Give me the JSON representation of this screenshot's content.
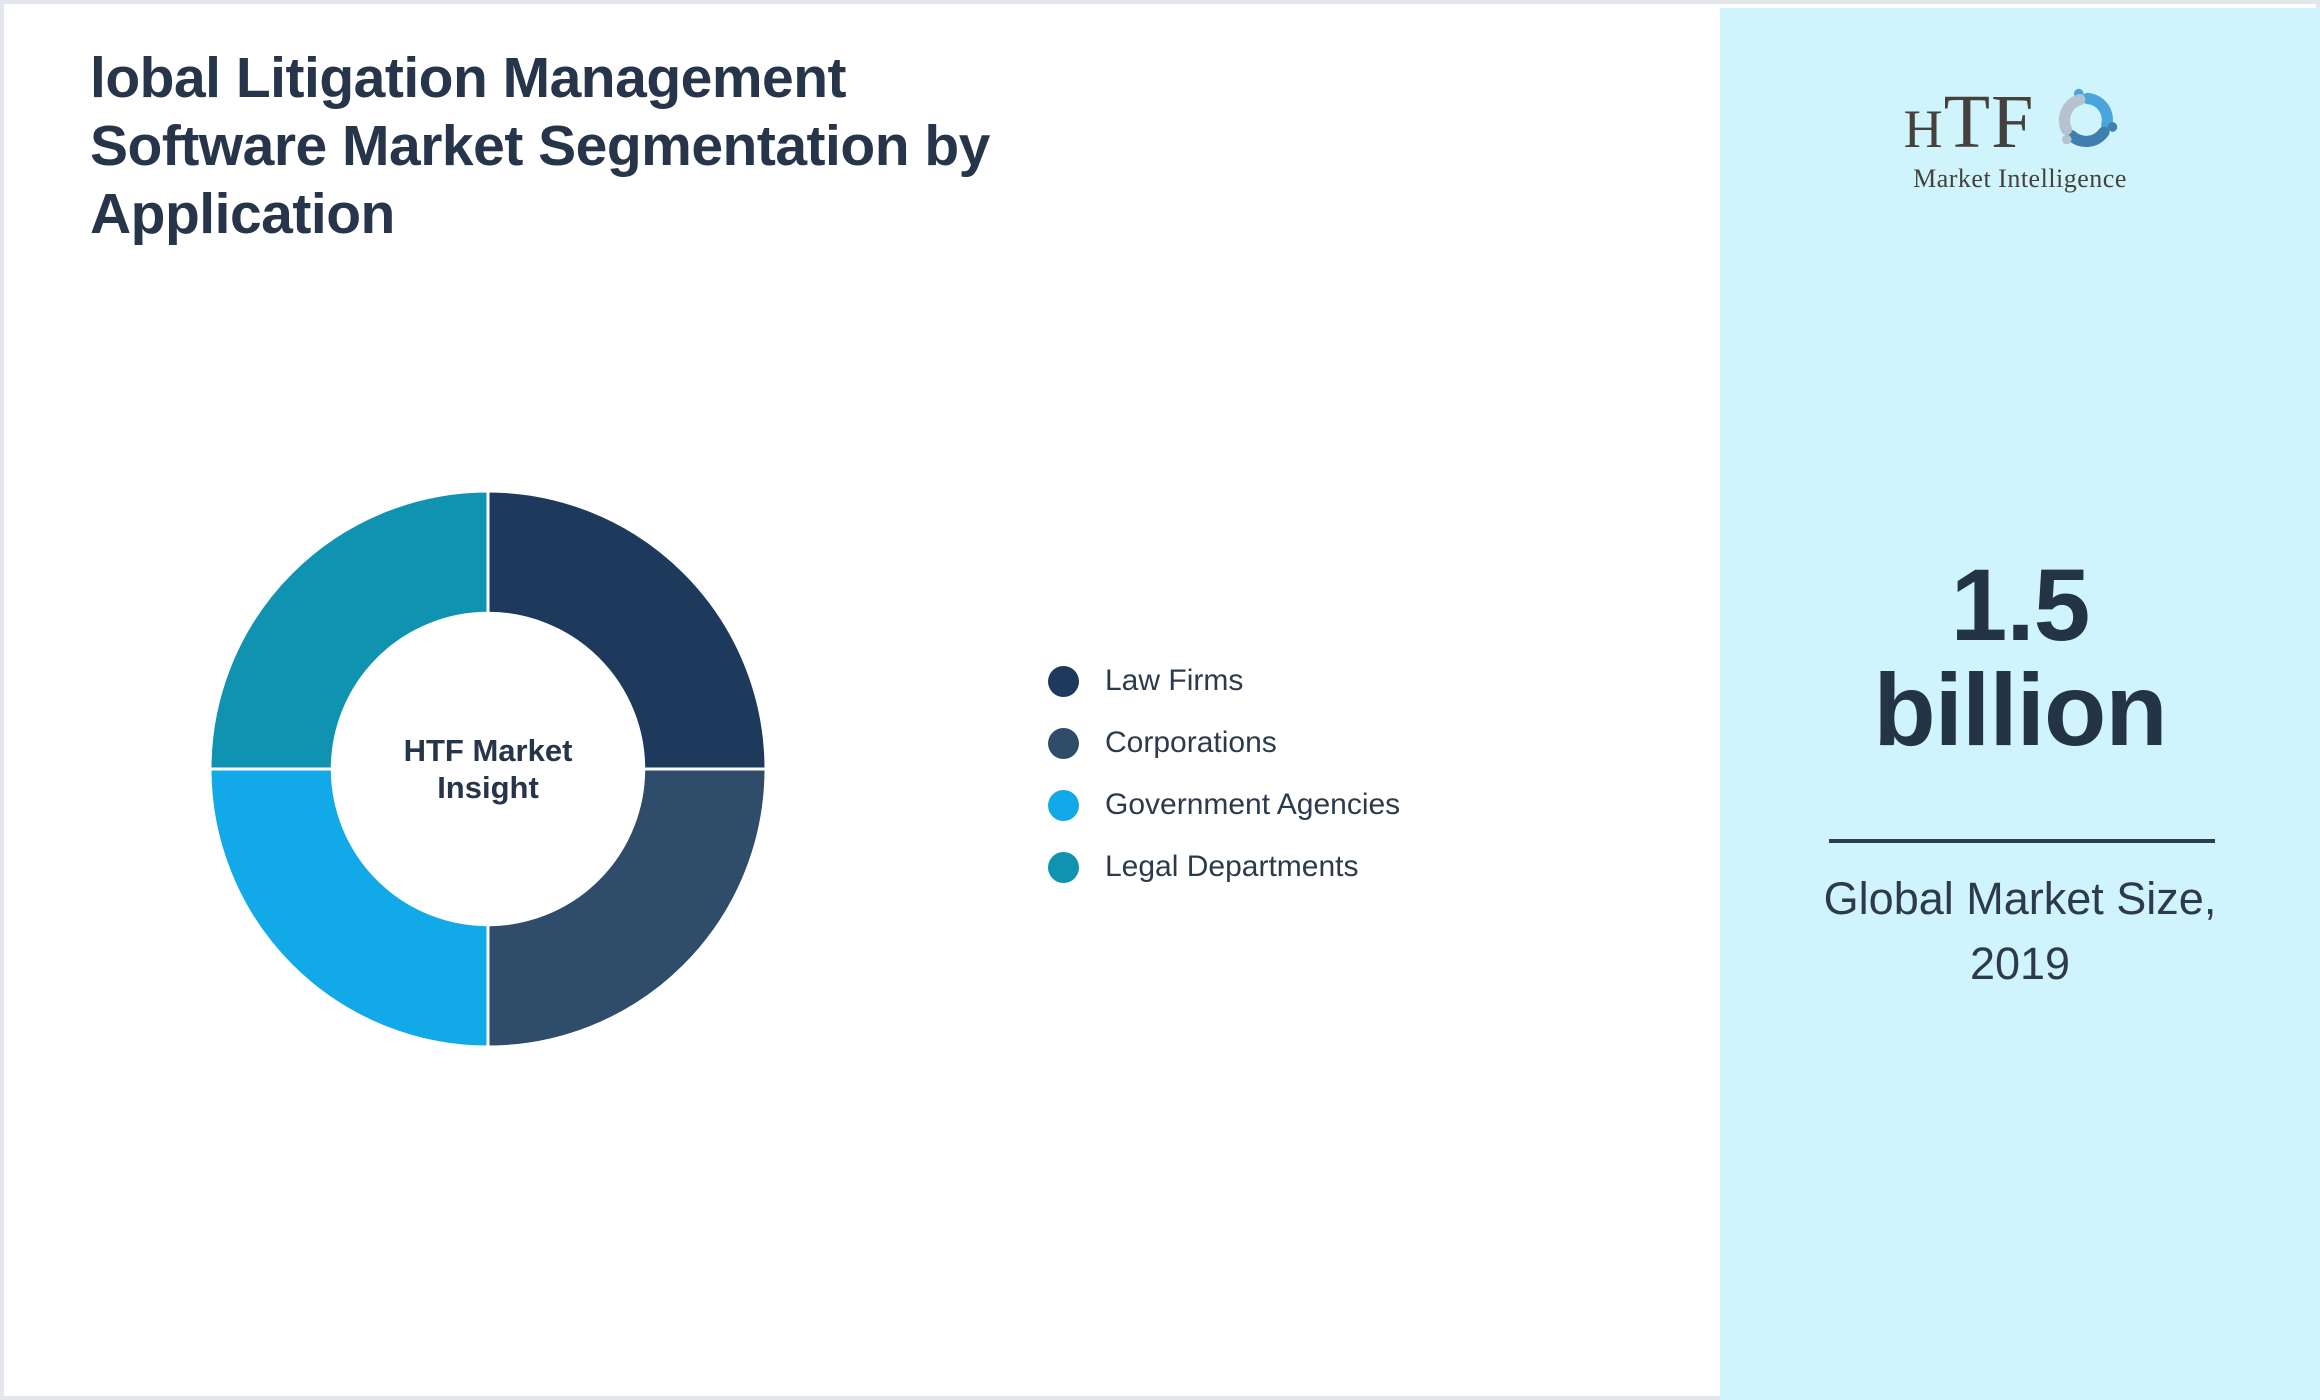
{
  "header": {
    "title_lines": [
      "lobal Litigation Management",
      "Software Market Segmentation by",
      "Application"
    ],
    "title_color": "#263549"
  },
  "chart_data": {
    "type": "pie",
    "subtype": "donut",
    "title": "",
    "center_label": "HTF Market Insight",
    "categories": [
      "Law Firms",
      "Corporations",
      "Government Agencies",
      "Legal Departments"
    ],
    "values": [
      25,
      25,
      25,
      25
    ],
    "unit": "%",
    "colors": [
      "#1d3a5c",
      "#2f4c6a",
      "#11a9e8",
      "#0f93b0"
    ],
    "start_angle_deg": 0,
    "direction": "clockwise",
    "inner_radius_ratio": 0.56,
    "separator_color": "#ffffff",
    "legend_position": "right-middle"
  },
  "sidebar": {
    "background": "#d0f4fc",
    "logo": {
      "brand_h": "H",
      "brand_tf": "TF",
      "subtitle": "Market Intelligence",
      "dolphin_colors": [
        "#4aa4dd",
        "#3e7fb0",
        "#b6c3ce"
      ]
    },
    "stat": {
      "value_line1": "1.5",
      "value_line2": "billion",
      "caption_line1": "Global Market Size,",
      "caption_line2": "2019",
      "divider_color": "#2c3e50"
    }
  }
}
